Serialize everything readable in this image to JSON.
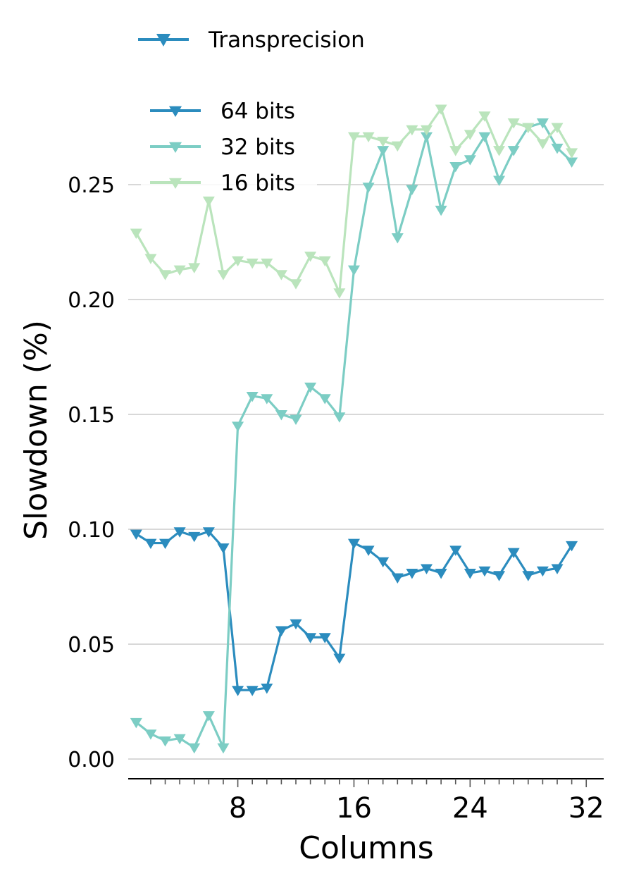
{
  "chart_data": {
    "type": "line",
    "title": "",
    "xlabel": "Columns",
    "ylabel": "Slowdown (%)",
    "xlim": [
      0,
      33
    ],
    "ylim": [
      -0.008,
      0.29
    ],
    "x_ticks": [
      8,
      16,
      24,
      32
    ],
    "y_ticks": [
      0.0,
      0.05,
      0.1,
      0.15,
      0.2,
      0.25
    ],
    "y_tick_labels": [
      "0.00",
      "0.05",
      "0.10",
      "0.15",
      "0.20",
      "0.25"
    ],
    "grid": "horizontal",
    "marker": "triangle-down",
    "legend_group_title": "Transprecision",
    "legend_group_color": "#2b8cbe",
    "legend_placement": "top-left",
    "x": [
      1,
      2,
      3,
      4,
      5,
      6,
      7,
      8,
      9,
      10,
      11,
      12,
      13,
      14,
      15,
      16,
      17,
      18,
      19,
      20,
      21,
      22,
      23,
      24,
      25,
      26,
      27,
      28,
      29,
      30,
      31,
      32
    ],
    "series": [
      {
        "name": "64 bits",
        "color": "#2b8cbe",
        "values": [
          0.098,
          0.094,
          0.094,
          0.099,
          0.097,
          0.099,
          0.092,
          0.03,
          0.03,
          0.031,
          0.056,
          0.059,
          0.053,
          0.053,
          0.044,
          0.094,
          0.091,
          0.086,
          0.079,
          0.081,
          0.083,
          0.081,
          0.091,
          0.081,
          0.082,
          0.08,
          0.09,
          0.08,
          0.082,
          0.083,
          0.093,
          null
        ]
      },
      {
        "name": "32 bits",
        "color": "#7ccdc4",
        "values": [
          0.016,
          0.011,
          0.008,
          0.009,
          0.005,
          0.019,
          0.005,
          0.145,
          0.158,
          0.157,
          0.15,
          0.148,
          0.162,
          0.157,
          0.149,
          0.213,
          0.249,
          0.265,
          0.227,
          0.248,
          0.271,
          0.239,
          0.258,
          0.261,
          0.271,
          0.252,
          0.265,
          0.275,
          0.277,
          0.266,
          0.26,
          null
        ]
      },
      {
        "name": "16 bits",
        "color": "#bae4bc",
        "values": [
          0.229,
          0.218,
          0.211,
          0.213,
          0.214,
          0.243,
          0.211,
          0.217,
          0.216,
          0.216,
          0.211,
          0.207,
          0.219,
          0.217,
          0.203,
          0.271,
          0.271,
          0.269,
          0.267,
          0.274,
          0.274,
          0.283,
          0.265,
          0.272,
          0.28,
          0.265,
          0.277,
          0.275,
          0.268,
          0.275,
          0.264,
          null
        ]
      }
    ]
  }
}
